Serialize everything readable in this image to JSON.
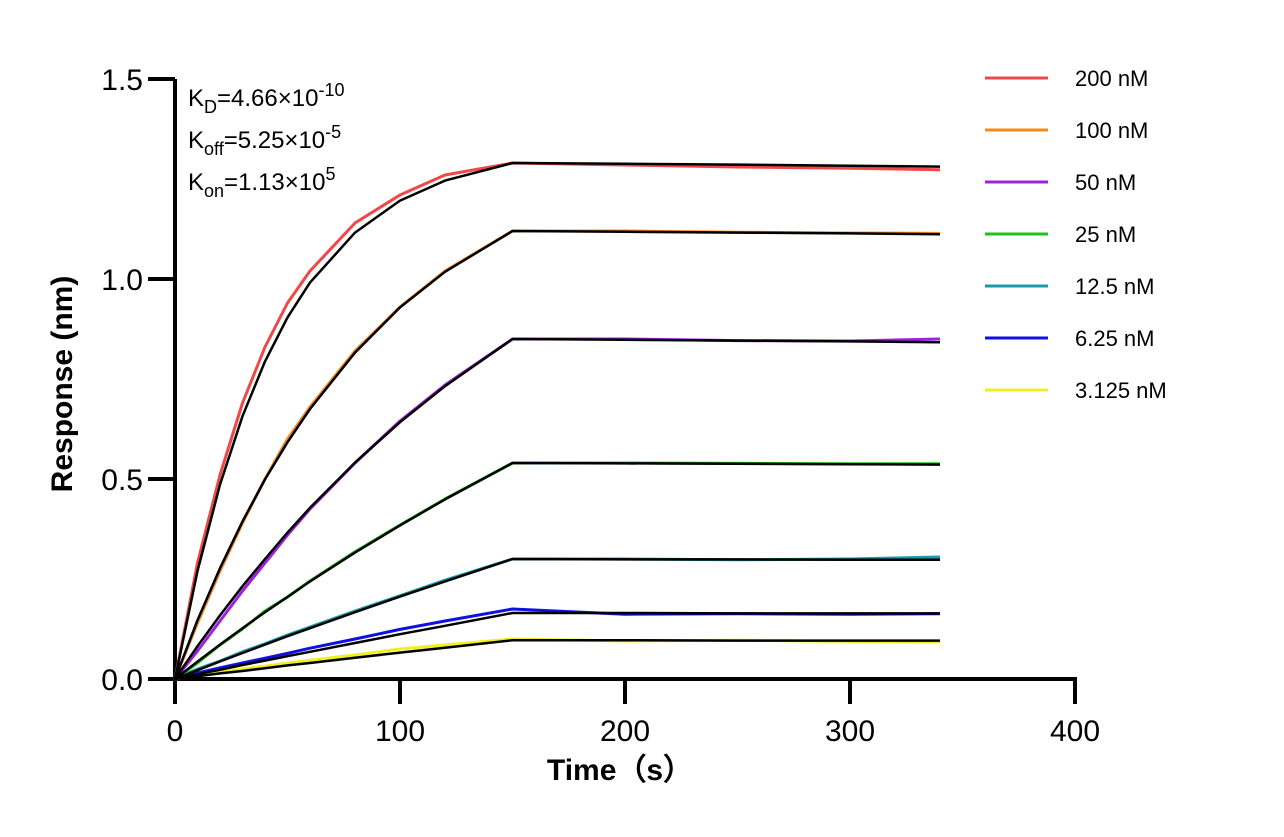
{
  "chart_data": {
    "type": "line",
    "x_label": "Time（s）",
    "y_label": "Response (nm)",
    "xlim": [
      0,
      400
    ],
    "ylim": [
      0,
      1.5
    ],
    "xticks": [
      0,
      100,
      200,
      300,
      400
    ],
    "yticks": [
      {
        "value": 0,
        "label": "0.0"
      },
      0.5,
      {
        "value": 1,
        "label": "1.0"
      },
      1.5
    ],
    "grid": false,
    "legend": "right",
    "fit_color": "#000000",
    "annotations": [
      {
        "symbol": "K",
        "subscript": "D",
        "text": "=4.66×10",
        "exponent": "-10"
      },
      {
        "symbol": "K",
        "subscript": "off",
        "text": "=5.25×10",
        "exponent": "-5"
      },
      {
        "symbol": "K",
        "subscript": "on",
        "text": "=1.13×10",
        "exponent": "5"
      }
    ],
    "x": [
      0,
      10,
      20,
      30,
      40,
      50,
      60,
      80,
      100,
      120,
      150,
      200,
      250,
      300,
      340
    ],
    "series": [
      {
        "name": "200 nM",
        "color": "#f04848",
        "values": [
          0,
          0.29,
          0.51,
          0.69,
          0.83,
          0.94,
          1.02,
          1.14,
          1.21,
          1.26,
          1.29,
          1.285,
          1.28,
          1.277,
          1.273
        ],
        "fit": [
          0,
          0.27,
          0.486,
          0.657,
          0.794,
          0.904,
          0.991,
          1.116,
          1.196,
          1.246,
          1.29,
          1.288,
          1.286,
          1.283,
          1.281
        ]
      },
      {
        "name": "100 nM",
        "color": "#f5891f",
        "values": [
          0,
          0.14,
          0.27,
          0.39,
          0.5,
          0.6,
          0.68,
          0.82,
          0.93,
          1.02,
          1.12,
          1.12,
          1.117,
          1.115,
          1.114
        ],
        "fit": [
          0,
          0.147,
          0.277,
          0.394,
          0.499,
          0.592,
          0.675,
          0.816,
          0.929,
          1.018,
          1.12,
          1.118,
          1.116,
          1.114,
          1.112
        ]
      },
      {
        "name": "50 nM",
        "color": "#a020e0",
        "values": [
          0,
          0.07,
          0.145,
          0.22,
          0.29,
          0.36,
          0.425,
          0.54,
          0.645,
          0.735,
          0.85,
          0.85,
          0.846,
          0.845,
          0.85
        ],
        "fit": [
          0,
          0.082,
          0.159,
          0.232,
          0.3,
          0.366,
          0.428,
          0.541,
          0.642,
          0.732,
          0.85,
          0.848,
          0.846,
          0.844,
          0.842
        ]
      },
      {
        "name": "25 nM",
        "color": "#20c020",
        "values": [
          0,
          0.04,
          0.085,
          0.125,
          0.17,
          0.205,
          0.245,
          0.318,
          0.385,
          0.45,
          0.54,
          0.54,
          0.539,
          0.538,
          0.538
        ],
        "fit": [
          0,
          0.0436,
          0.086,
          0.127,
          0.167,
          0.205,
          0.244,
          0.316,
          0.384,
          0.449,
          0.54,
          0.539,
          0.538,
          0.537,
          0.536
        ]
      },
      {
        "name": "12.5 nM",
        "color": "#1a9aaa",
        "values": [
          0,
          0.025,
          0.045,
          0.068,
          0.088,
          0.11,
          0.13,
          0.17,
          0.208,
          0.247,
          0.3,
          0.3,
          0.298,
          0.3,
          0.305
        ],
        "fit": [
          0,
          0.022,
          0.0437,
          0.065,
          0.086,
          0.107,
          0.127,
          0.167,
          0.206,
          0.244,
          0.3,
          0.299,
          0.299,
          0.298,
          0.298
        ]
      },
      {
        "name": "6.25 nM",
        "color": "#1010e0",
        "values": [
          0,
          0.015,
          0.028,
          0.04,
          0.052,
          0.064,
          0.077,
          0.1,
          0.124,
          0.145,
          0.175,
          0.162,
          0.163,
          0.162,
          0.163
        ],
        "fit": [
          0,
          0.012,
          0.023,
          0.035,
          0.046,
          0.057,
          0.068,
          0.09,
          0.112,
          0.133,
          0.165,
          0.165,
          0.164,
          0.164,
          0.164
        ]
      },
      {
        "name": "3.125 nM",
        "color": "#f0f020",
        "values": [
          0,
          0.01,
          0.017,
          0.025,
          0.032,
          0.04,
          0.047,
          0.06,
          0.075,
          0.085,
          0.1,
          0.095,
          0.097,
          0.094,
          0.093
        ],
        "fit": [
          0,
          0.007,
          0.014,
          0.02,
          0.027,
          0.034,
          0.04,
          0.053,
          0.066,
          0.078,
          0.097,
          0.097,
          0.096,
          0.096,
          0.096
        ]
      }
    ]
  }
}
